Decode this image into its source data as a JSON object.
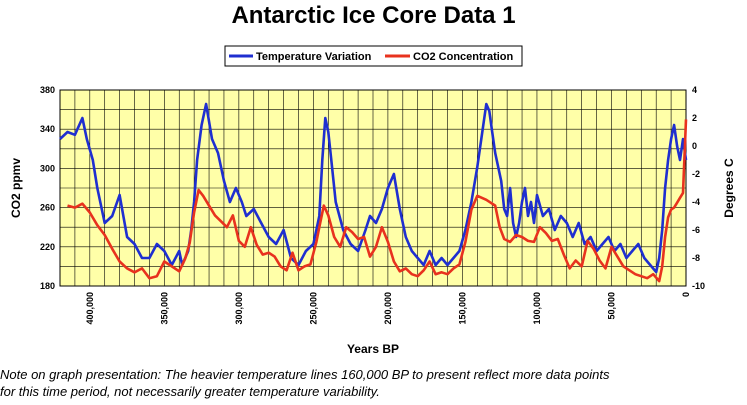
{
  "title": "Antarctic Ice Core Data 1",
  "note_line1": "Note on graph presentation: The heavier temperature lines 160,000 BP to present reflect more data points",
  "note_line2": "for this time period, not necessarily greater temperature variability.",
  "chart_data": {
    "type": "line",
    "title": "Antarctic Ice Core Data 1",
    "xlabel": "Years BP",
    "ylabel_left": "CO2 ppmv",
    "ylabel_right": "Degrees C",
    "xlim": [
      420000,
      0
    ],
    "ylim_left": [
      180,
      380
    ],
    "ylim_right": [
      -10,
      4
    ],
    "x_ticks": [
      400000,
      350000,
      300000,
      250000,
      200000,
      150000,
      100000,
      50000,
      0
    ],
    "x_tick_labels": [
      "400,000",
      "350,000",
      "300,000",
      "250,000",
      "200,000",
      "150,000",
      "100,000",
      "50,000",
      "0"
    ],
    "y_left_ticks": [
      180,
      220,
      260,
      300,
      340,
      380
    ],
    "y_right_ticks": [
      -10,
      -8,
      -6,
      -4,
      -2,
      0,
      2,
      4
    ],
    "grid": true,
    "legend_position": "top-center",
    "plot_background": "#FFFFA8",
    "series": [
      {
        "name": "Temperature Variation",
        "axis": "right",
        "color": "#1F2FD0",
        "x": [
          420000,
          415000,
          410000,
          405000,
          402000,
          398000,
          395000,
          390000,
          385000,
          380000,
          375000,
          370000,
          365000,
          360000,
          355000,
          350000,
          345000,
          340000,
          338000,
          336000,
          334000,
          332000,
          330000,
          328000,
          325000,
          322000,
          318000,
          314000,
          310000,
          306000,
          302000,
          298000,
          295000,
          290000,
          285000,
          280000,
          275000,
          270000,
          265000,
          260000,
          255000,
          250000,
          246000,
          244000,
          242000,
          240000,
          238000,
          235000,
          230000,
          225000,
          220000,
          215000,
          212000,
          208000,
          204000,
          200000,
          196000,
          192000,
          188000,
          184000,
          180000,
          176000,
          172000,
          168000,
          164000,
          160000,
          156000,
          152000,
          148000,
          144000,
          140000,
          136000,
          134000,
          132000,
          130000,
          128000,
          126000,
          124000,
          122000,
          120000,
          118000,
          116000,
          114000,
          112000,
          110000,
          108000,
          106000,
          104000,
          102000,
          100000,
          96000,
          92000,
          88000,
          84000,
          80000,
          76000,
          72000,
          68000,
          64000,
          60000,
          56000,
          52000,
          48000,
          44000,
          40000,
          36000,
          32000,
          28000,
          24000,
          20000,
          18000,
          16000,
          14000,
          12000,
          10000,
          8000,
          6000,
          4000,
          2000,
          0
        ],
        "values": [
          0.5,
          1.0,
          0.8,
          2.0,
          0.5,
          -1.0,
          -3.0,
          -5.5,
          -5.0,
          -3.5,
          -6.5,
          -7.0,
          -8.0,
          -8.0,
          -7.0,
          -7.5,
          -8.5,
          -7.5,
          -8.5,
          -8.0,
          -7.5,
          -6.0,
          -4.0,
          -1.0,
          1.5,
          3.0,
          0.5,
          -0.5,
          -2.5,
          -4.0,
          -3.0,
          -4.0,
          -5.0,
          -4.5,
          -5.5,
          -6.5,
          -7.0,
          -6.0,
          -8.0,
          -8.5,
          -7.5,
          -7.0,
          -5.0,
          -1.0,
          2.0,
          1.0,
          -1.0,
          -4.0,
          -6.0,
          -7.0,
          -7.5,
          -6.0,
          -5.0,
          -5.5,
          -4.5,
          -3.0,
          -2.0,
          -4.5,
          -6.5,
          -7.5,
          -8.0,
          -8.5,
          -7.5,
          -8.5,
          -8.0,
          -8.5,
          -8.0,
          -7.5,
          -6.0,
          -4.0,
          -1.5,
          1.5,
          3.0,
          2.5,
          1.0,
          -0.5,
          -1.5,
          -2.5,
          -4.5,
          -5.0,
          -3.0,
          -5.5,
          -6.5,
          -5.5,
          -4.0,
          -3.0,
          -5.0,
          -4.0,
          -5.5,
          -3.5,
          -5.0,
          -4.5,
          -6.0,
          -5.0,
          -5.5,
          -6.5,
          -5.5,
          -7.0,
          -6.5,
          -7.5,
          -7.0,
          -6.5,
          -7.5,
          -7.0,
          -8.0,
          -7.5,
          -7.0,
          -8.0,
          -8.5,
          -9.0,
          -8.0,
          -6.0,
          -3.0,
          -1.0,
          0.5,
          1.5,
          0.0,
          -1.0,
          0.5,
          -1.0
        ]
      },
      {
        "name": "CO2 Concentration",
        "axis": "left",
        "color": "#E8321E",
        "x": [
          415000,
          410000,
          405000,
          400000,
          395000,
          390000,
          385000,
          380000,
          375000,
          370000,
          365000,
          360000,
          355000,
          350000,
          345000,
          340000,
          336000,
          333000,
          330000,
          327000,
          324000,
          320000,
          316000,
          312000,
          308000,
          304000,
          300000,
          296000,
          292000,
          288000,
          284000,
          280000,
          276000,
          272000,
          268000,
          264000,
          260000,
          256000,
          252000,
          248000,
          246000,
          243000,
          240000,
          236000,
          232000,
          228000,
          224000,
          220000,
          216000,
          212000,
          208000,
          204000,
          200000,
          196000,
          192000,
          188000,
          184000,
          180000,
          176000,
          172000,
          168000,
          164000,
          160000,
          156000,
          152000,
          148000,
          144000,
          140000,
          137000,
          134000,
          131000,
          128000,
          125000,
          122000,
          118000,
          114000,
          110000,
          106000,
          102000,
          98000,
          94000,
          90000,
          86000,
          82000,
          78000,
          74000,
          70000,
          66000,
          62000,
          58000,
          54000,
          50000,
          46000,
          42000,
          38000,
          34000,
          30000,
          26000,
          22000,
          18000,
          16000,
          14000,
          12000,
          10000,
          8000,
          6000,
          4000,
          2000,
          0
        ],
        "values": [
          262,
          260,
          264,
          255,
          242,
          232,
          218,
          205,
          198,
          194,
          198,
          188,
          190,
          205,
          200,
          195,
          208,
          224,
          255,
          278,
          272,
          262,
          252,
          246,
          240,
          252,
          226,
          220,
          240,
          222,
          212,
          214,
          210,
          200,
          196,
          214,
          196,
          200,
          202,
          225,
          240,
          262,
          252,
          230,
          220,
          240,
          235,
          228,
          230,
          210,
          220,
          240,
          225,
          205,
          195,
          198,
          192,
          190,
          196,
          205,
          192,
          194,
          192,
          198,
          202,
          225,
          258,
          272,
          270,
          268,
          265,
          262,
          240,
          228,
          225,
          232,
          230,
          226,
          225,
          240,
          234,
          226,
          228,
          212,
          198,
          206,
          200,
          226,
          218,
          206,
          198,
          220,
          210,
          200,
          196,
          192,
          190,
          188,
          192,
          185,
          200,
          230,
          250,
          258,
          260,
          265,
          270,
          275,
          350
        ]
      }
    ]
  }
}
